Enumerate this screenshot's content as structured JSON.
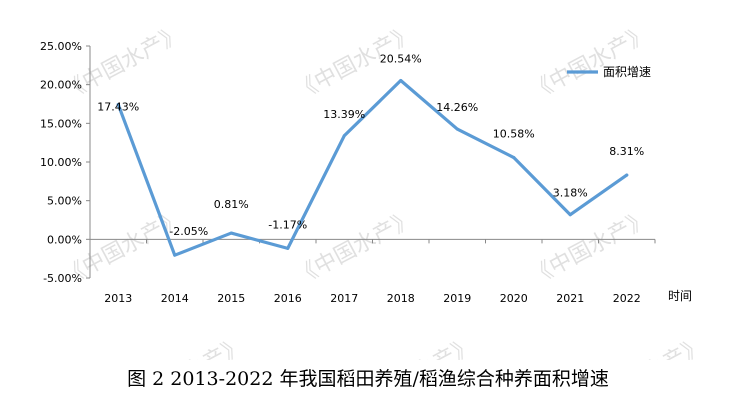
{
  "chart_data": {
    "type": "line",
    "categories": [
      "2013",
      "2014",
      "2015",
      "2016",
      "2017",
      "2018",
      "2019",
      "2020",
      "2021",
      "2022"
    ],
    "series": [
      {
        "name": "面积增速",
        "values": [
          17.43,
          -2.05,
          0.81,
          -1.17,
          13.39,
          20.54,
          14.26,
          10.58,
          3.18,
          8.31
        ],
        "labels": [
          "17.43%",
          "-2.05%",
          "0.81%",
          "-1.17%",
          "13.39%",
          "20.54%",
          "14.26%",
          "10.58%",
          "3.18%",
          "8.31%"
        ],
        "color": "#5b9bd5"
      }
    ],
    "xlabel": "时间",
    "ylabel": "",
    "ylim": [
      -5,
      25
    ],
    "yticks": [
      -5,
      0,
      5,
      10,
      15,
      20,
      25
    ],
    "ytick_labels": [
      "-5.00%",
      "0.00%",
      "5.00%",
      "10.00%",
      "15.00%",
      "20.00%",
      "25.00%"
    ],
    "grid": false,
    "legend_position": "top-right"
  },
  "caption": "图 2 2013-2022 年我国稻田养殖/稻渔综合种养面积增速",
  "watermark": "《中国水产》"
}
